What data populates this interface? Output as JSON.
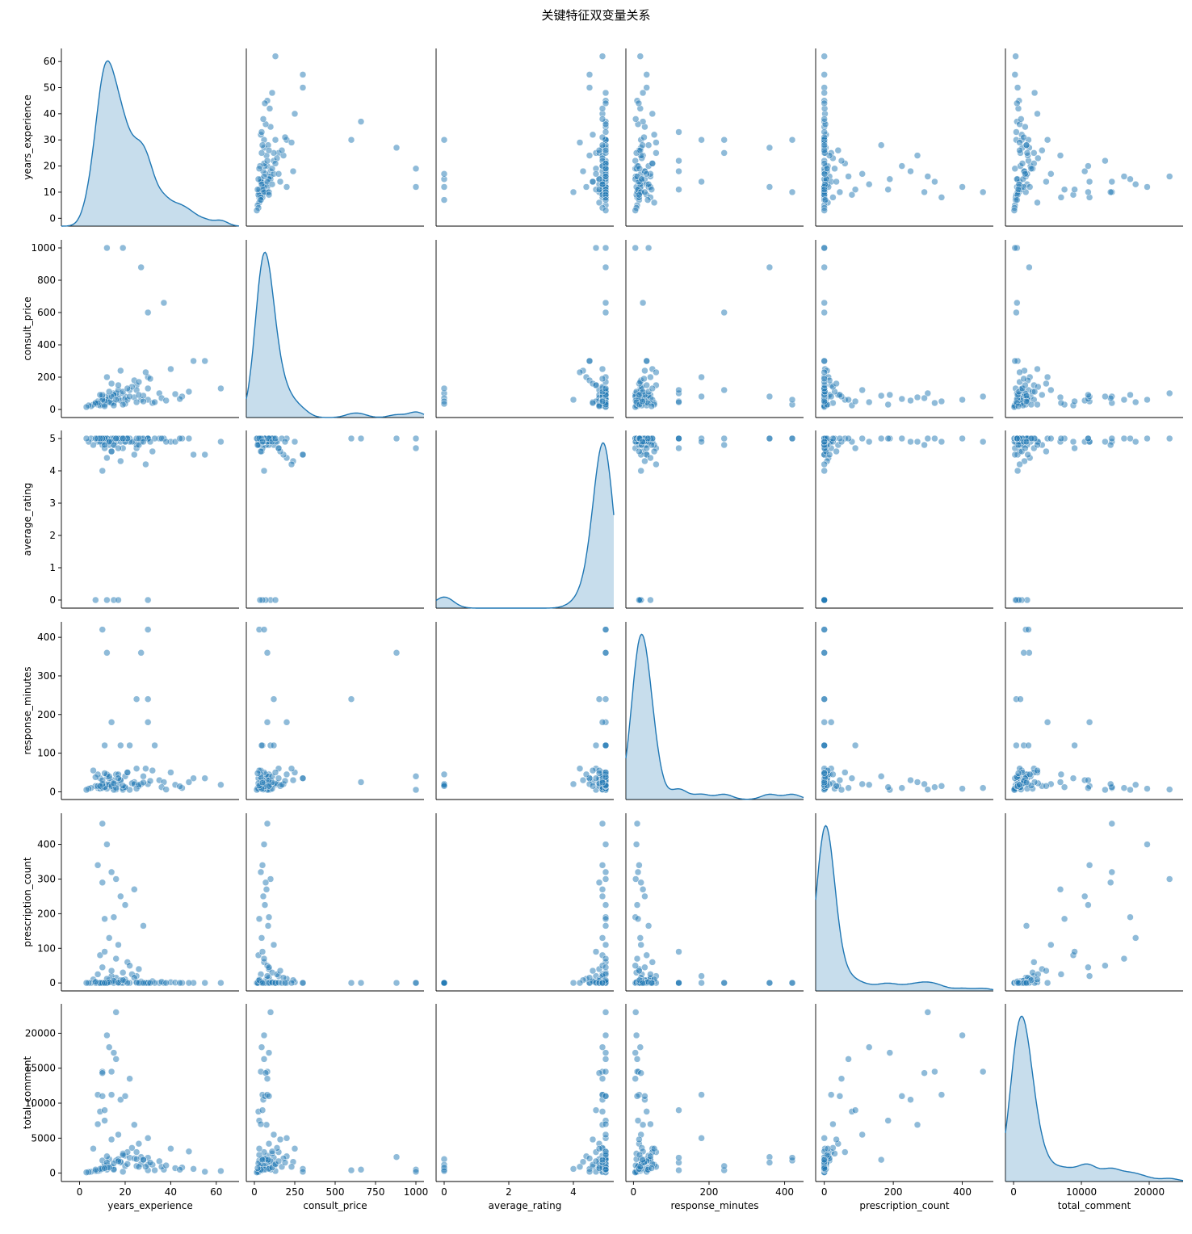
{
  "chart_data": {
    "type": "scatter",
    "subtype": "pairplot",
    "title": "关键特征双变量关系",
    "variables": [
      "years_experience",
      "consult_price",
      "average_rating",
      "response_minutes",
      "prescription_count",
      "total_comment"
    ],
    "diagonal": "kde",
    "off_diagonal": "scatter",
    "point_color": "#1f77b4",
    "point_alpha": 0.5,
    "grid": false,
    "axes": {
      "years_experience": {
        "lim": [
          -8,
          70
        ],
        "ticks": [
          0,
          20,
          40,
          60
        ],
        "tick_labels": [
          "0",
          "20",
          "40",
          "60"
        ],
        "y_ticks": [
          0,
          10,
          20,
          30,
          40,
          50,
          60
        ],
        "y_tick_labels": [
          "0",
          "10",
          "20",
          "30",
          "40",
          "50",
          "60"
        ],
        "y_lim": [
          -3,
          65
        ]
      },
      "consult_price": {
        "lim": [
          -50,
          1050
        ],
        "ticks": [
          0,
          250,
          500,
          750,
          1000
        ],
        "tick_labels": [
          "0",
          "250",
          "500",
          "750",
          "1000"
        ],
        "y_ticks": [
          0,
          200,
          400,
          600,
          800,
          1000
        ],
        "y_tick_labels": [
          "0",
          "200",
          "400",
          "600",
          "800",
          "1000"
        ],
        "y_lim": [
          -50,
          1050
        ]
      },
      "average_rating": {
        "lim": [
          -0.25,
          5.25
        ],
        "ticks": [
          0,
          2,
          4
        ],
        "tick_labels": [
          "0",
          "2",
          "4"
        ],
        "y_ticks": [
          0,
          1,
          2,
          3,
          4,
          5
        ],
        "y_tick_labels": [
          "0",
          "1",
          "2",
          "3",
          "4",
          "5"
        ],
        "y_lim": [
          -0.25,
          5.25
        ]
      },
      "response_minutes": {
        "lim": [
          -20,
          450
        ],
        "ticks": [
          0,
          200,
          400
        ],
        "tick_labels": [
          "0",
          "200",
          "400"
        ],
        "y_ticks": [
          0,
          100,
          200,
          300,
          400
        ],
        "y_tick_labels": [
          "0",
          "100",
          "200",
          "300",
          "400"
        ],
        "y_lim": [
          -20,
          440
        ]
      },
      "prescription_count": {
        "lim": [
          -25,
          490
        ],
        "ticks": [
          0,
          200,
          400
        ],
        "tick_labels": [
          "0",
          "200",
          "400"
        ],
        "y_ticks": [
          0,
          100,
          200,
          300,
          400
        ],
        "y_tick_labels": [
          "0",
          "100",
          "200",
          "300",
          "400"
        ],
        "y_lim": [
          -23,
          490
        ]
      },
      "total_comment": {
        "lim": [
          -1200,
          25000
        ],
        "ticks": [
          0,
          10000,
          20000
        ],
        "tick_labels": [
          "0",
          "10000",
          "20000"
        ],
        "y_ticks": [
          0,
          5000,
          10000,
          15000,
          20000
        ],
        "y_tick_labels": [
          "0",
          "5000",
          "10000",
          "15000",
          "20000"
        ],
        "y_lim": [
          -1200,
          24200
        ]
      }
    },
    "records": [
      [
        10,
        50,
        5.0,
        15,
        0,
        800
      ],
      [
        12,
        60,
        4.9,
        20,
        2,
        1200
      ],
      [
        15,
        40,
        4.8,
        30,
        5,
        600
      ],
      [
        8,
        30,
        5.0,
        10,
        0,
        300
      ],
      [
        20,
        80,
        4.9,
        40,
        10,
        2500
      ],
      [
        18,
        100,
        5.0,
        120,
        0,
        1500
      ],
      [
        25,
        150,
        4.7,
        60,
        20,
        3000
      ],
      [
        30,
        200,
        5.0,
        180,
        0,
        5000
      ],
      [
        14,
        45,
        4.6,
        25,
        3,
        900
      ],
      [
        11,
        55,
        4.9,
        12,
        1,
        1100
      ],
      [
        9,
        35,
        5.0,
        8,
        0,
        400
      ],
      [
        13,
        70,
        4.8,
        35,
        8,
        2000
      ],
      [
        16,
        90,
        4.9,
        45,
        15,
        1800
      ],
      [
        22,
        120,
        5.0,
        120,
        0,
        2200
      ],
      [
        27,
        60,
        4.9,
        20,
        4,
        1300
      ],
      [
        35,
        100,
        5.0,
        30,
        0,
        1700
      ],
      [
        40,
        250,
        4.9,
        50,
        2,
        3500
      ],
      [
        45,
        80,
        5.0,
        10,
        0,
        800
      ],
      [
        50,
        300,
        4.5,
        35,
        0,
        600
      ],
      [
        12,
        1000,
        5.0,
        40,
        0,
        500
      ],
      [
        19,
        1000,
        4.7,
        5,
        0,
        200
      ],
      [
        27,
        880,
        5.0,
        360,
        0,
        2300
      ],
      [
        30,
        600,
        5.0,
        240,
        0,
        400
      ],
      [
        37,
        660,
        5.0,
        25,
        0,
        500
      ],
      [
        62,
        130,
        4.9,
        18,
        0,
        300
      ],
      [
        55,
        300,
        4.5,
        35,
        0,
        200
      ],
      [
        10,
        30,
        5.0,
        420,
        0,
        1800
      ],
      [
        30,
        60,
        5.0,
        420,
        0,
        2200
      ],
      [
        12,
        80,
        5.0,
        360,
        0,
        1500
      ],
      [
        25,
        120,
        4.8,
        240,
        0,
        1000
      ],
      [
        15,
        100,
        0.0,
        20,
        0,
        500
      ],
      [
        17,
        70,
        0.0,
        45,
        0,
        2000
      ],
      [
        30,
        130,
        0.0,
        20,
        0,
        1200
      ],
      [
        12,
        50,
        0.0,
        18,
        0,
        800
      ],
      [
        7,
        35,
        0.0,
        15,
        0,
        300
      ],
      [
        10,
        80,
        4.9,
        10,
        460,
        14500
      ],
      [
        12,
        60,
        5.0,
        8,
        400,
        19700
      ],
      [
        8,
        50,
        4.9,
        15,
        340,
        11200
      ],
      [
        14,
        40,
        5.0,
        12,
        320,
        14500
      ],
      [
        16,
        100,
        5.0,
        6,
        300,
        23000
      ],
      [
        10,
        70,
        4.8,
        20,
        290,
        14300
      ],
      [
        18,
        55,
        4.9,
        30,
        250,
        10500
      ],
      [
        20,
        65,
        5.0,
        10,
        225,
        11000
      ],
      [
        24,
        75,
        4.9,
        25,
        270,
        6900
      ],
      [
        15,
        90,
        5.0,
        5,
        190,
        17200
      ],
      [
        28,
        85,
        5.0,
        40,
        165,
        1900
      ],
      [
        11,
        30,
        5.0,
        12,
        185,
        7500
      ],
      [
        13,
        45,
        4.9,
        18,
        130,
        18000
      ],
      [
        17,
        120,
        5.0,
        20,
        110,
        5500
      ],
      [
        9,
        25,
        4.9,
        35,
        80,
        8800
      ],
      [
        21,
        60,
        5.0,
        50,
        60,
        3000
      ],
      [
        26,
        90,
        4.8,
        15,
        40,
        4200
      ],
      [
        19,
        110,
        5.0,
        8,
        30,
        2800
      ],
      [
        23,
        140,
        4.9,
        22,
        25,
        3600
      ],
      [
        11,
        50,
        4.7,
        120,
        90,
        9000
      ],
      [
        14,
        80,
        4.9,
        180,
        20,
        11200
      ],
      [
        32,
        40,
        4.6,
        55,
        5,
        1200
      ],
      [
        36,
        70,
        5.0,
        12,
        3,
        900
      ],
      [
        42,
        95,
        4.9,
        18,
        1,
        700
      ],
      [
        48,
        110,
        5.0,
        25,
        0,
        3100
      ],
      [
        12,
        200,
        4.4,
        45,
        12,
        2400
      ],
      [
        18,
        240,
        4.3,
        30,
        8,
        1600
      ],
      [
        24,
        180,
        4.5,
        20,
        15,
        2100
      ],
      [
        29,
        230,
        4.2,
        60,
        0,
        900
      ],
      [
        14,
        160,
        4.6,
        15,
        35,
        4800
      ],
      [
        10,
        60,
        4.0,
        20,
        0,
        600
      ],
      [
        22,
        80,
        4.9,
        5,
        50,
        13500
      ],
      [
        16,
        60,
        5.0,
        10,
        70,
        16300
      ],
      [
        10,
        90,
        5.0,
        30,
        45,
        11000
      ],
      [
        8,
        40,
        5.0,
        45,
        25,
        7000
      ],
      [
        6,
        30,
        4.8,
        55,
        10,
        3500
      ],
      [
        5,
        20,
        5.0,
        10,
        0,
        200
      ],
      [
        4,
        25,
        4.9,
        8,
        0,
        150
      ],
      [
        3,
        15,
        5.0,
        5,
        0,
        100
      ],
      [
        33,
        45,
        5.0,
        120,
        0,
        400
      ],
      [
        38,
        55,
        4.9,
        6,
        0,
        1100
      ],
      [
        44,
        65,
        5.0,
        14,
        0,
        500
      ],
      [
        20,
        35,
        4.9,
        12,
        5,
        1000
      ],
      [
        25,
        45,
        5.0,
        8,
        2,
        2000
      ],
      [
        15,
        25,
        4.8,
        22,
        6,
        1400
      ],
      [
        9,
        90,
        5.0,
        15,
        0,
        600
      ],
      [
        13,
        110,
        4.9,
        40,
        2,
        800
      ],
      [
        21,
        130,
        5.0,
        50,
        0,
        1300
      ],
      [
        17,
        150,
        4.7,
        35,
        1,
        1700
      ],
      [
        26,
        170,
        5.0,
        18,
        0,
        900
      ],
      [
        31,
        190,
        4.9,
        28,
        0,
        1500
      ],
      [
        7,
        40,
        5.0,
        38,
        3,
        500
      ],
      [
        11,
        20,
        4.8,
        48,
        0,
        700
      ],
      [
        19,
        30,
        5.0,
        16,
        8,
        2600
      ],
      [
        28,
        50,
        4.9,
        24,
        0,
        1900
      ]
    ]
  }
}
